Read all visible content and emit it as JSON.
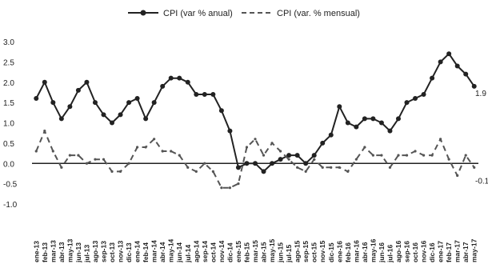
{
  "chart_data": {
    "type": "line",
    "title": "",
    "xlabel": "",
    "ylabel": "",
    "ylim": [
      -1.0,
      3.0
    ],
    "yticks": [
      "3.0",
      "2.5",
      "2.0",
      "1.5",
      "1.0",
      "0.5",
      "0.0",
      "-0.5",
      "-1.0"
    ],
    "grid": false,
    "legend_position": "top-center",
    "categories": [
      "ene-13",
      "feb-13",
      "mar-13",
      "abr-13",
      "may-13",
      "jun-13",
      "jul-13",
      "ago-13",
      "sep-13",
      "oct-13",
      "nov-13",
      "dic-13",
      "ene-14",
      "feb-14",
      "mar-14",
      "abr-14",
      "may-14",
      "jun-14",
      "jul-14",
      "ago-14",
      "sep-14",
      "oct-14",
      "nov-14",
      "dic-14",
      "ene-15",
      "feb-15",
      "mar-15",
      "abr-15",
      "may-15",
      "jun-15",
      "jul-15",
      "ago-15",
      "sep-15",
      "oct-15",
      "nov-15",
      "dic-15",
      "ene-16",
      "feb-16",
      "mar-16",
      "abr-16",
      "may-16",
      "jun-16",
      "jul-16",
      "ago-16",
      "sep-16",
      "oct-16",
      "nov-16",
      "dic-16",
      "ene-17",
      "feb-17",
      "mar-17",
      "abr-17",
      "may-17"
    ],
    "series": [
      {
        "name": "CPI (var % anual)",
        "style": "solid-marker",
        "color": "#222222",
        "values": [
          1.6,
          2.0,
          1.5,
          1.1,
          1.4,
          1.8,
          2.0,
          1.5,
          1.2,
          1.0,
          1.2,
          1.5,
          1.6,
          1.1,
          1.5,
          1.9,
          2.1,
          2.1,
          2.0,
          1.7,
          1.7,
          1.7,
          1.3,
          0.8,
          -0.1,
          0.0,
          0.0,
          -0.2,
          0.0,
          0.1,
          0.2,
          0.2,
          0.0,
          0.2,
          0.5,
          0.7,
          1.4,
          1.0,
          0.9,
          1.1,
          1.1,
          1.0,
          0.8,
          1.1,
          1.5,
          1.6,
          1.7,
          2.1,
          2.5,
          2.7,
          2.4,
          2.2,
          1.9
        ],
        "end_label": "1.9"
      },
      {
        "name": "CPI (var. % mensual)",
        "style": "dashed-marker",
        "color": "#555555",
        "values": [
          0.3,
          0.8,
          0.3,
          -0.1,
          0.2,
          0.2,
          0.0,
          0.1,
          0.1,
          -0.2,
          -0.2,
          0.0,
          0.4,
          0.4,
          0.6,
          0.3,
          0.3,
          0.2,
          -0.1,
          -0.2,
          0.0,
          -0.2,
          -0.6,
          -0.6,
          -0.5,
          0.4,
          0.6,
          0.2,
          0.5,
          0.3,
          0.1,
          -0.1,
          -0.2,
          0.1,
          -0.1,
          -0.1,
          -0.1,
          -0.2,
          0.1,
          0.4,
          0.2,
          0.2,
          -0.1,
          0.2,
          0.2,
          0.3,
          0.2,
          0.2,
          0.6,
          0.1,
          -0.3,
          0.2,
          -0.1
        ],
        "end_label": "-0.1"
      }
    ]
  }
}
